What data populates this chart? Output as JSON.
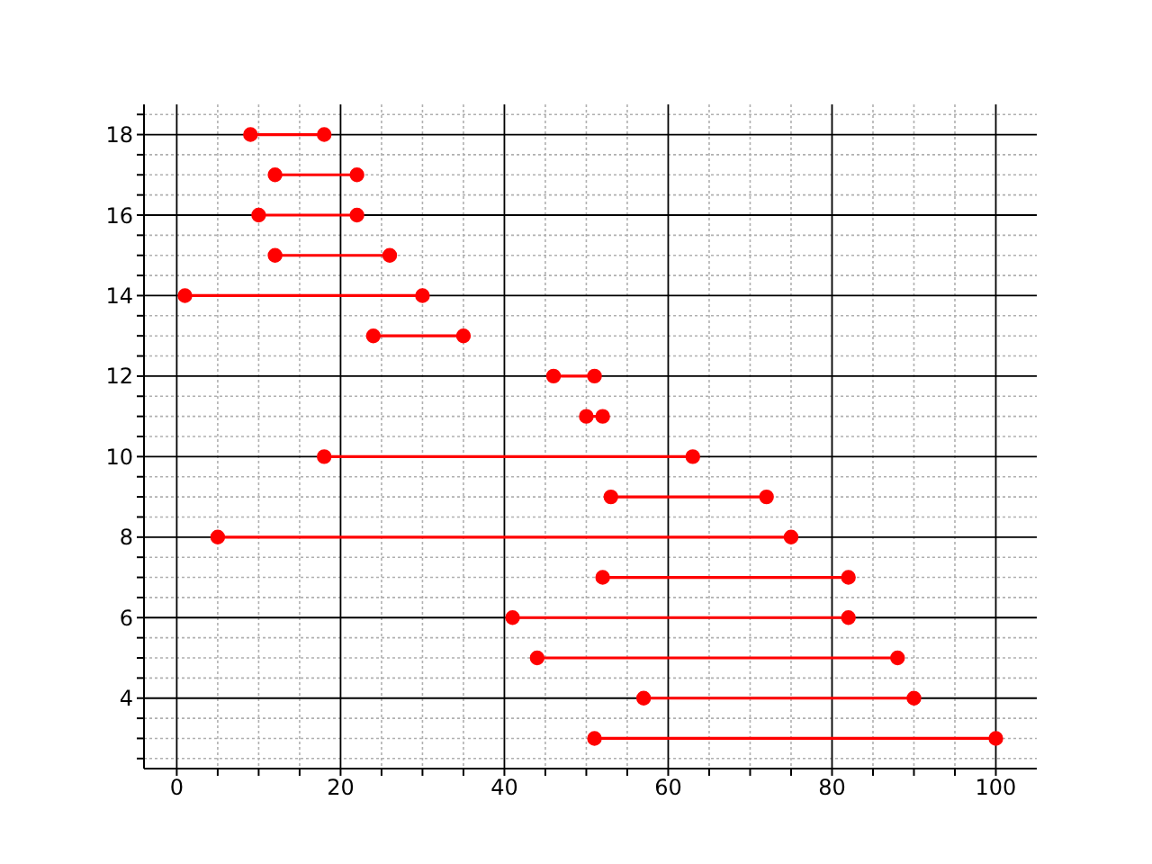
{
  "chart_data": {
    "type": "line",
    "marker": "circle",
    "line_style": "solid",
    "grid": true,
    "xlim": [
      -4,
      105
    ],
    "xticks": [
      0,
      {
        "value": 5,
        "label": null
      },
      {
        "value": 10,
        "label": null
      },
      {
        "value": 15,
        "label": null
      },
      20,
      {
        "value": 25,
        "label": null
      },
      {
        "value": 30,
        "label": null
      },
      {
        "value": 35,
        "label": null
      },
      40,
      {
        "value": 45,
        "label": null
      },
      {
        "value": 50,
        "label": null
      },
      {
        "value": 55,
        "label": null
      },
      60,
      {
        "value": 65,
        "label": null
      },
      {
        "value": 70,
        "label": null
      },
      {
        "value": 75,
        "label": null
      },
      80,
      {
        "value": 85,
        "label": null
      },
      {
        "value": 90,
        "label": null
      },
      {
        "value": 95,
        "label": null
      },
      100
    ],
    "ylim": [
      2.25,
      18.75
    ],
    "yticks": [
      {
        "value": 2.5,
        "label": null
      },
      {
        "value": 3,
        "label": null
      },
      {
        "value": 3.5,
        "label": null
      },
      4,
      {
        "value": 4.5,
        "label": null
      },
      {
        "value": 5,
        "label": null
      },
      {
        "value": 5.5,
        "label": null
      },
      6,
      {
        "value": 6.5,
        "label": null
      },
      {
        "value": 7,
        "label": null
      },
      {
        "value": 7.5,
        "label": null
      },
      8,
      {
        "value": 8.5,
        "label": null
      },
      {
        "value": 9,
        "label": null
      },
      {
        "value": 9.5,
        "label": null
      },
      10,
      {
        "value": 10.5,
        "label": null
      },
      {
        "value": 11,
        "label": null
      },
      {
        "value": 11.5,
        "label": null
      },
      12,
      {
        "value": 12.5,
        "label": null
      },
      {
        "value": 13,
        "label": null
      },
      {
        "value": 13.5,
        "label": null
      },
      14,
      {
        "value": 14.5,
        "label": null
      },
      {
        "value": 15,
        "label": null
      },
      {
        "value": 15.5,
        "label": null
      },
      16,
      {
        "value": 16.5,
        "label": null
      },
      {
        "value": 17,
        "label": null
      },
      {
        "value": 17.5,
        "label": null
      },
      18,
      {
        "value": 18.5,
        "label": null
      }
    ],
    "series": [
      {
        "color": "#ff0000",
        "x": [
          9,
          18
        ],
        "values": [
          18,
          18
        ]
      },
      {
        "color": "#ff0000",
        "x": [
          12,
          22
        ],
        "values": [
          17,
          17
        ]
      },
      {
        "color": "#ff0000",
        "x": [
          10,
          22
        ],
        "values": [
          16,
          16
        ]
      },
      {
        "color": "#ff0000",
        "x": [
          12,
          26
        ],
        "values": [
          15,
          15
        ]
      },
      {
        "color": "#ff0000",
        "x": [
          1,
          30
        ],
        "values": [
          14,
          14
        ]
      },
      {
        "color": "#ff0000",
        "x": [
          24,
          35
        ],
        "values": [
          13,
          13
        ]
      },
      {
        "color": "#ff0000",
        "x": [
          46,
          51
        ],
        "values": [
          12,
          12
        ]
      },
      {
        "color": "#ff0000",
        "x": [
          50,
          52
        ],
        "values": [
          11,
          11
        ]
      },
      {
        "color": "#ff0000",
        "x": [
          18,
          63
        ],
        "values": [
          10,
          10
        ]
      },
      {
        "color": "#ff0000",
        "x": [
          53,
          72
        ],
        "values": [
          9,
          9
        ]
      },
      {
        "color": "#ff0000",
        "x": [
          5,
          75
        ],
        "values": [
          8,
          8
        ]
      },
      {
        "color": "#ff0000",
        "x": [
          52,
          82
        ],
        "values": [
          7,
          7
        ]
      },
      {
        "color": "#ff0000",
        "x": [
          41,
          82
        ],
        "values": [
          6,
          6
        ]
      },
      {
        "color": "#ff0000",
        "x": [
          44,
          88
        ],
        "values": [
          5,
          5
        ]
      },
      {
        "color": "#ff0000",
        "x": [
          57,
          90
        ],
        "values": [
          4,
          4
        ]
      },
      {
        "color": "#ff0000",
        "x": [
          51,
          100
        ],
        "values": [
          3,
          3
        ]
      }
    ]
  }
}
